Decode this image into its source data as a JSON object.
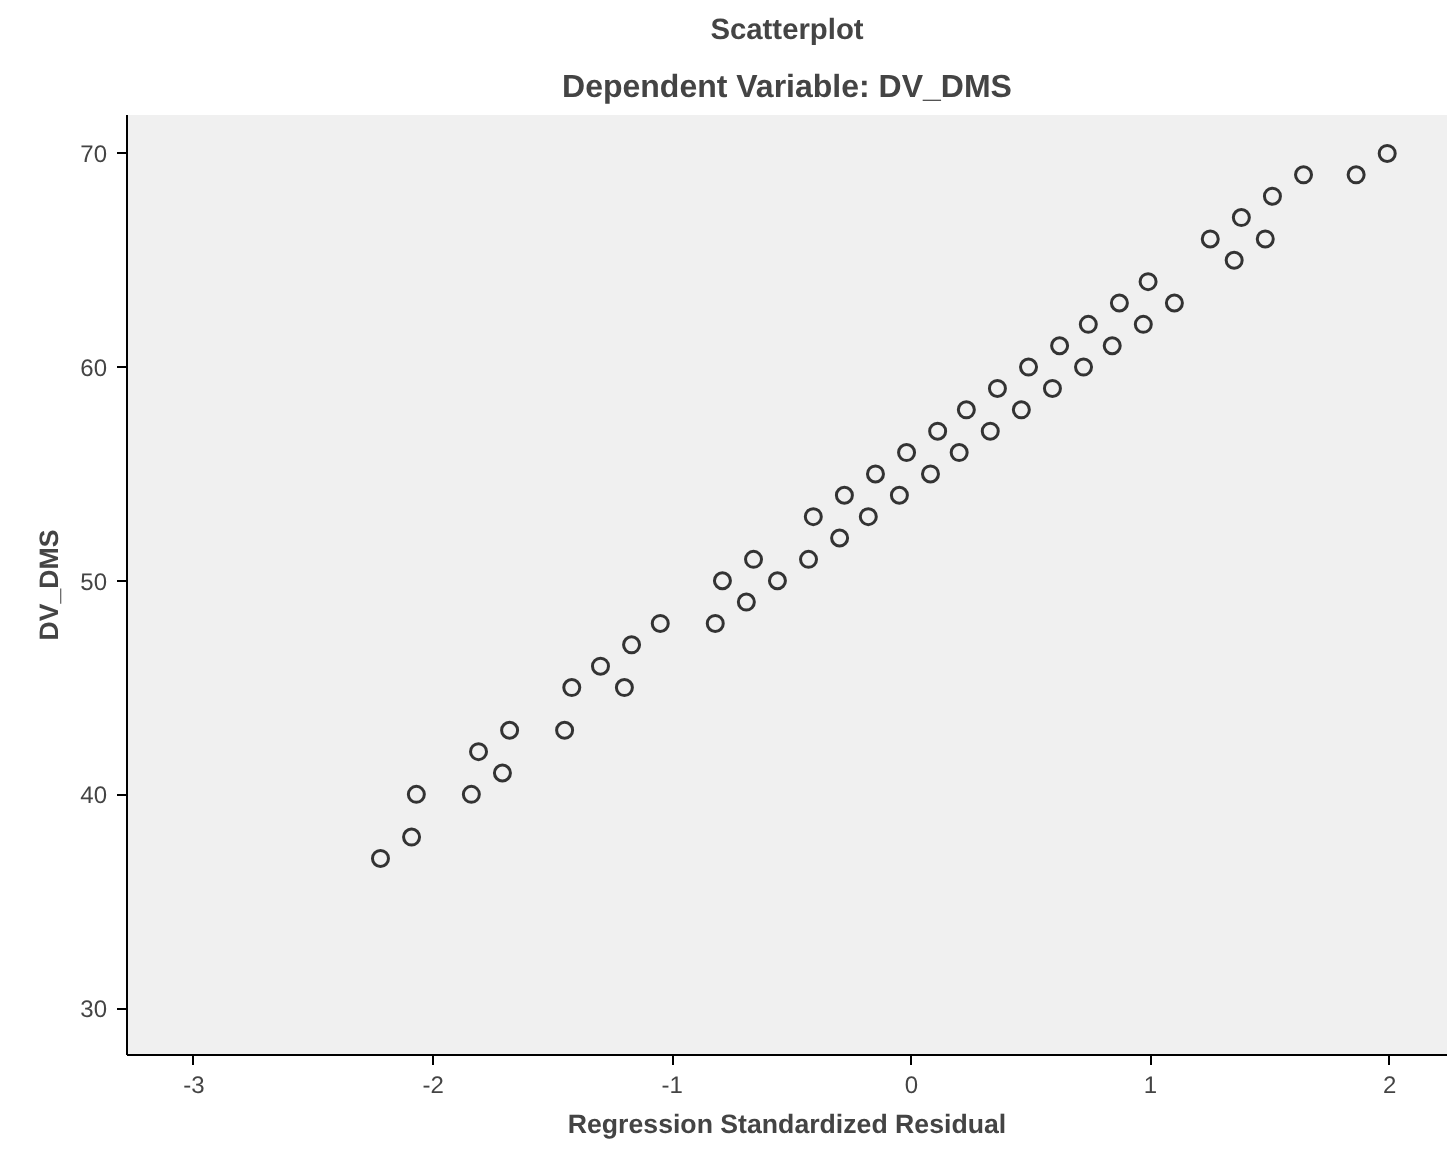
{
  "chart_data": {
    "type": "scatter",
    "title": "Scatterplot",
    "subtitle": "Dependent Variable: DV_DMS",
    "xlabel": "Regression Standardized Residual",
    "ylabel": "DV_DMS",
    "xlim": [
      -3.28,
      2.24
    ],
    "ylim": [
      27.8,
      71.8
    ],
    "xticks": [
      -3,
      -2,
      -1,
      0,
      1,
      2
    ],
    "yticks": [
      30,
      40,
      50,
      60,
      70
    ],
    "grid": false,
    "marker": "circle",
    "series": [
      {
        "color": "#333333",
        "x": [
          1.99,
          1.86,
          1.64,
          1.51,
          1.38,
          1.25,
          1.48,
          1.35,
          0.99,
          0.87,
          1.1,
          0.74,
          0.97,
          0.62,
          0.84,
          0.49,
          0.72,
          0.36,
          0.59,
          0.23,
          0.46,
          0.11,
          0.33,
          -0.02,
          0.2,
          -0.15,
          0.08,
          -0.28,
          -0.05,
          -0.41,
          -0.18,
          -0.3,
          -0.66,
          -0.43,
          -0.79,
          -0.56,
          -0.69,
          -1.05,
          -0.82,
          -1.17,
          -1.3,
          -1.42,
          -1.2,
          -1.45,
          -1.68,
          -1.81,
          -1.71,
          -2.07,
          -1.84,
          -2.09,
          -2.22
        ],
        "values": [
          70,
          69,
          69,
          68,
          67,
          66,
          66,
          65,
          64,
          63,
          63,
          62,
          62,
          61,
          61,
          60,
          60,
          59,
          59,
          58,
          58,
          57,
          57,
          56,
          56,
          55,
          55,
          54,
          54,
          53,
          53,
          52,
          51,
          51,
          50,
          50,
          49,
          48,
          48,
          47,
          46,
          45,
          45,
          43,
          43,
          42,
          41,
          40,
          40,
          38,
          37
        ]
      }
    ]
  }
}
